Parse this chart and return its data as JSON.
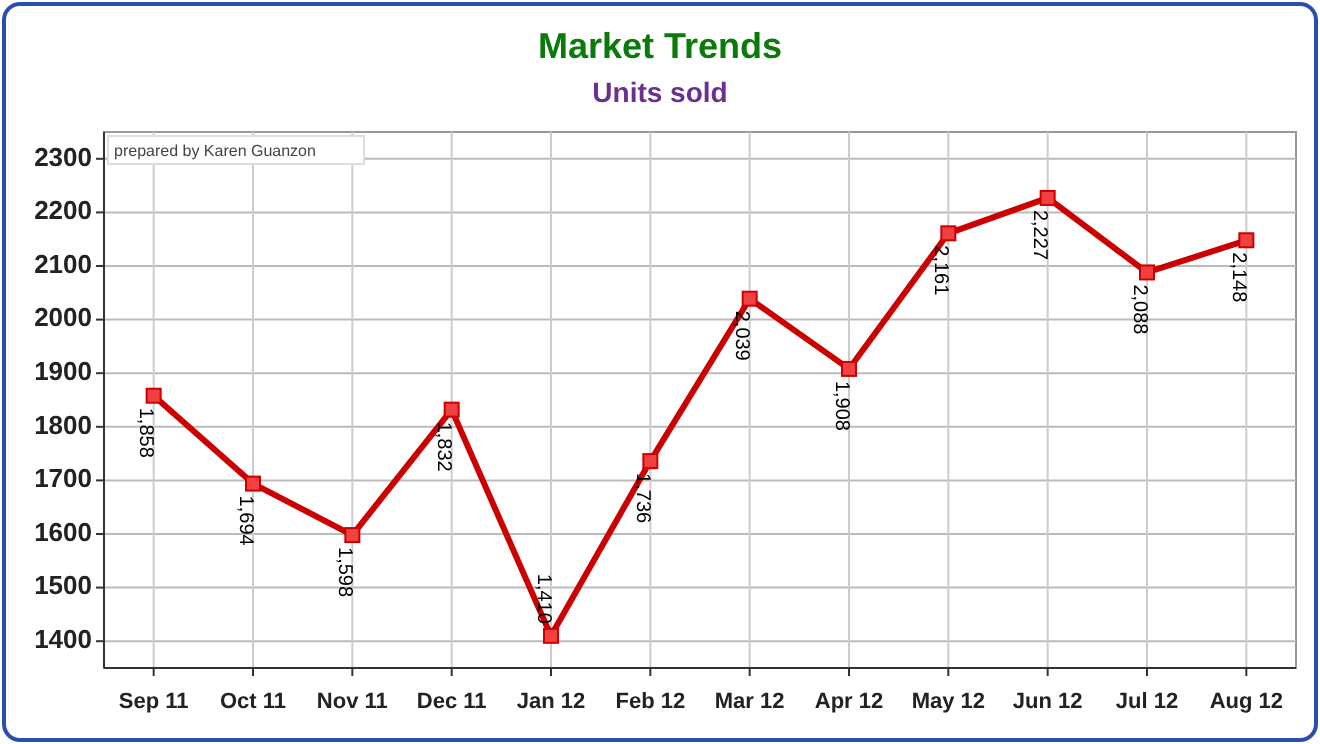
{
  "chart_data": {
    "type": "line",
    "title": "Market Trends",
    "subtitle": "Units sold",
    "categories": [
      "Sep 11",
      "Oct 11",
      "Nov 11",
      "Dec 11",
      "Jan 12",
      "Feb 12",
      "Mar 12",
      "Apr 12",
      "May 12",
      "Jun 12",
      "Jul 12",
      "Aug 12"
    ],
    "series": [
      {
        "color": "#cc0000",
        "values": [
          1858,
          1694,
          1598,
          1832,
          1410,
          1736,
          2039,
          1908,
          2161,
          2227,
          2088,
          2148
        ],
        "value_labels": [
          "1,858",
          "1,694",
          "1,598",
          "1,832",
          "1,410",
          "1,736",
          "2,039",
          "1,908",
          "2,161",
          "2,227",
          "2,088",
          "2,148"
        ]
      }
    ],
    "ylim": [
      1350,
      2350
    ],
    "yticks": [
      1400,
      1500,
      1600,
      1700,
      1800,
      1900,
      2000,
      2100,
      2200,
      2300
    ],
    "grid": true,
    "marker": "square",
    "line_style": "solid",
    "annotations": [
      "prepared by Karen Guanzon"
    ]
  }
}
